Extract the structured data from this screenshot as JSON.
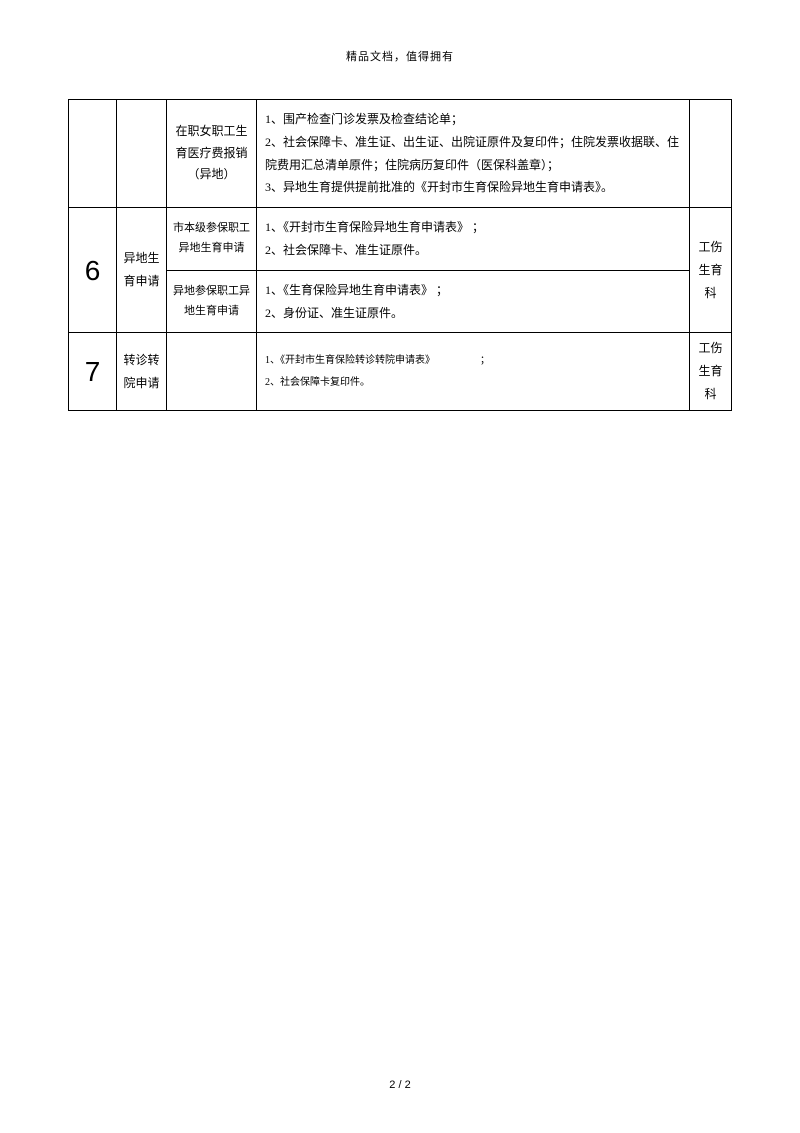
{
  "header": "精品文档，值得拥有",
  "footer": "2 / 2",
  "table": {
    "border_color": "#000000",
    "background_color": "#ffffff",
    "rows": [
      {
        "num": "",
        "cat": "",
        "sub": "在职女职工生育医疗费报销（异地）",
        "content_lines": [
          "1、围产检查门诊发票及检查结论单；",
          "2、社会保障卡、准生证、出生证、出院证原件及复印件；住院发票收据联、住院费用汇总清单原件；住院病历复印件（医保科盖章）；",
          "3、异地生育提供提前批准的《开封市生育保险异地生育申请表》。"
        ],
        "dept": ""
      },
      {
        "num": "6",
        "cat": "异地生育申请",
        "sub_a": "市本级参保职工异地生育申请",
        "content_a_lines": [
          "1、《开封市生育保险异地生育申请表》  ；",
          "2、社会保障卡、准生证原件。"
        ],
        "sub_b": "异地参保职工异地生育申请",
        "content_b_lines": [
          "1、《生育保险异地生育申请表》  ；",
          "2、身份证、准生证原件。"
        ],
        "dept": "工伤生育科"
      },
      {
        "num": "7",
        "cat": "转诊转院申请",
        "sub": "",
        "content_lines": [
          "1、《开封市生育保险转诊转院申请表》　　　　　；",
          "2、社会保障卡复印件。"
        ],
        "dept": "工伤生育科"
      }
    ]
  }
}
